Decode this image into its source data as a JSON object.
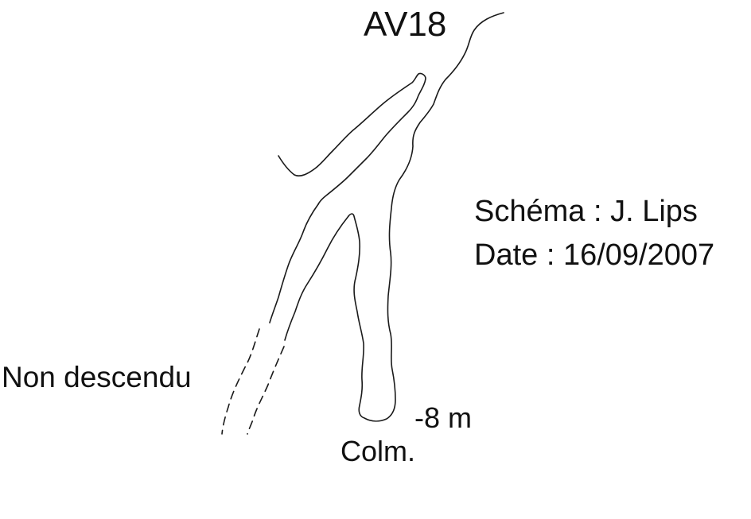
{
  "title": "AV18",
  "author_line": "Schéma : J. Lips",
  "date_line": "Date :  16/09/2007",
  "labels": {
    "not_descended": "Non descendu",
    "depth": "-8 m",
    "bottom": "Colm."
  },
  "colors": {
    "line": "#1a1a1a",
    "text": "#111111",
    "background": "#ffffff"
  }
}
